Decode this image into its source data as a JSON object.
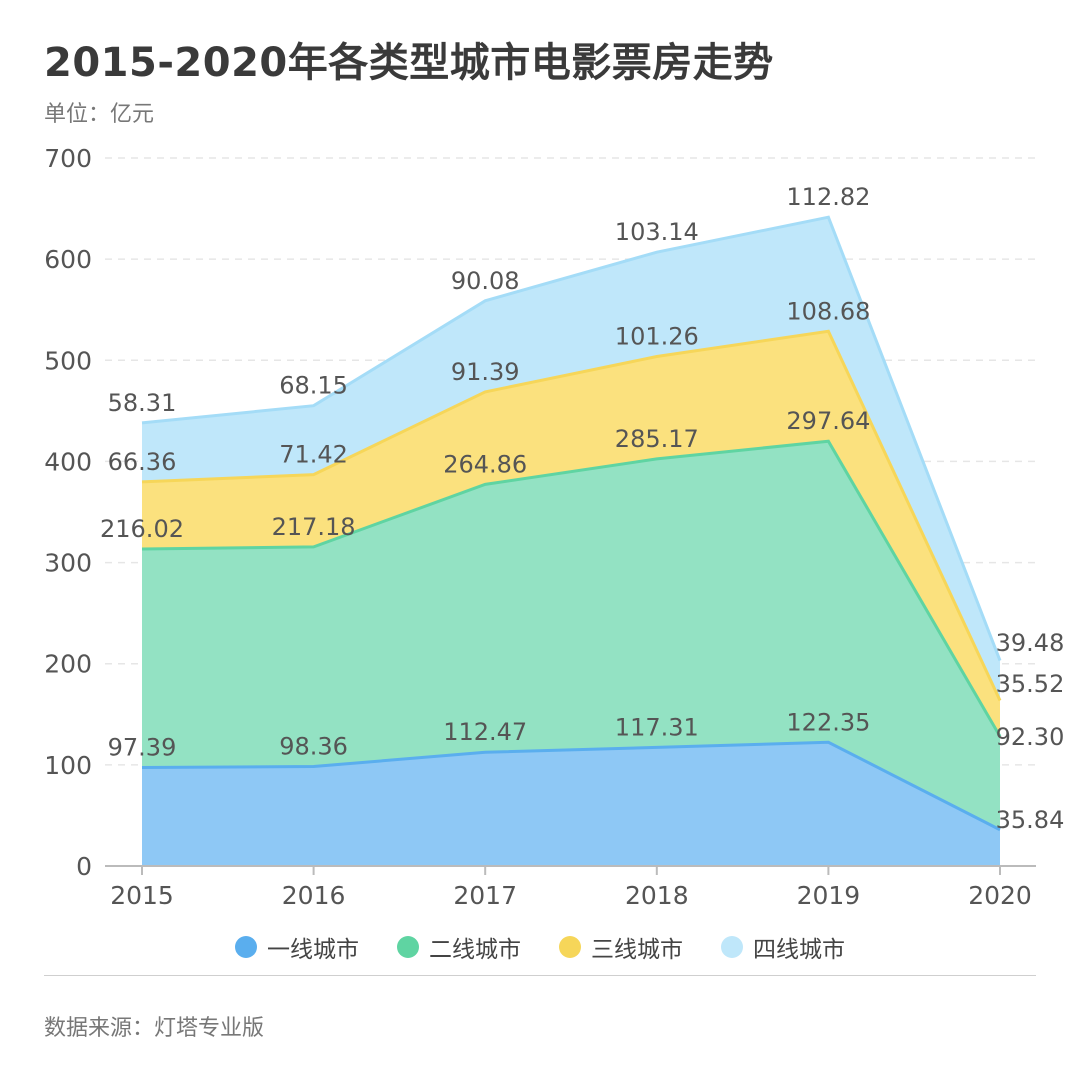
{
  "header": {
    "title": "2015-2020年各类型城市电影票房走势",
    "unit": "单位：亿元"
  },
  "footer": {
    "source": "数据来源：灯塔专业版"
  },
  "colors": {
    "tier1": "#8ec8f5",
    "tier1_line": "#5aaeee",
    "tier2": "#93e2c3",
    "tier2_line": "#5fd4a2",
    "tier3": "#fbe17e",
    "tier3_line": "#f6d659",
    "tier4": "#bfe7fa",
    "tier4_line": "#a4dcf7",
    "grid": "#e6e6e6",
    "axis_text": "#555555"
  },
  "chart_data": {
    "type": "area",
    "stacked": true,
    "x": [
      "2015",
      "2016",
      "2017",
      "2018",
      "2019",
      "2020"
    ],
    "ylim": [
      0,
      700
    ],
    "yticks": [
      0,
      100,
      200,
      300,
      400,
      500,
      600,
      700
    ],
    "grid": "horizontal dashed",
    "legend_position": "bottom",
    "series": [
      {
        "name": "一线城市",
        "values": [
          97.39,
          98.36,
          112.47,
          117.31,
          122.35,
          35.84
        ],
        "labels": [
          "97.39",
          "98.36",
          "112.47",
          "117.31",
          "122.35",
          "35.84"
        ]
      },
      {
        "name": "二线城市",
        "values": [
          216.02,
          217.18,
          264.86,
          285.17,
          297.64,
          92.3
        ],
        "labels": [
          "216.02",
          "217.18",
          "264.86",
          "285.17",
          "297.64",
          "92.30"
        ]
      },
      {
        "name": "三线城市",
        "values": [
          66.36,
          71.42,
          91.39,
          101.26,
          108.68,
          35.52
        ],
        "labels": [
          "66.36",
          "71.42",
          "91.39",
          "101.26",
          "108.68",
          "35.52"
        ]
      },
      {
        "name": "四线城市",
        "values": [
          58.31,
          68.15,
          90.08,
          103.14,
          112.82,
          39.48
        ],
        "labels": [
          "58.31",
          "68.15",
          "90.08",
          "103.14",
          "112.82",
          "39.48"
        ]
      }
    ]
  }
}
